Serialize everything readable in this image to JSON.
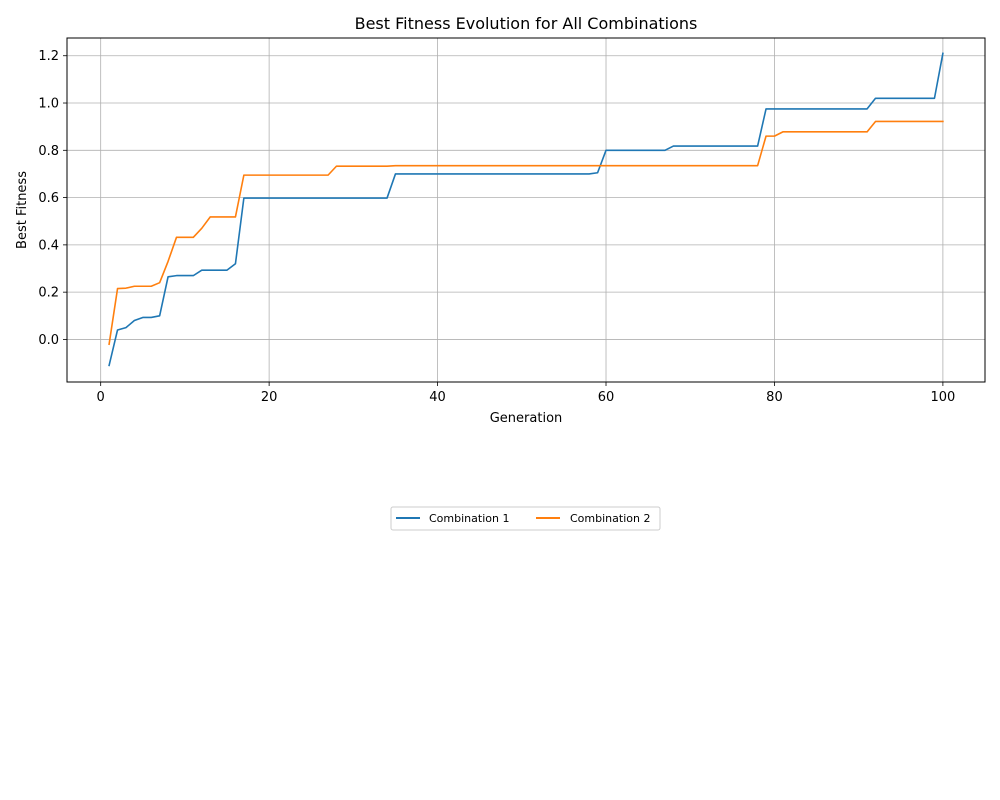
{
  "chart_data": {
    "type": "line",
    "title": "Best Fitness Evolution for All Combinations",
    "xlabel": "Generation",
    "ylabel": "Best Fitness",
    "xlim": [
      -4,
      105
    ],
    "ylim": [
      -0.18,
      1.275
    ],
    "x_ticks": [
      0,
      20,
      40,
      60,
      80,
      100
    ],
    "x_tick_labels": [
      "0",
      "20",
      "40",
      "60",
      "80",
      "100"
    ],
    "y_ticks": [
      0.0,
      0.2,
      0.4,
      0.6,
      0.8,
      1.0,
      1.2
    ],
    "y_tick_labels": [
      "0.0",
      "0.2",
      "0.4",
      "0.6",
      "0.8",
      "1.0",
      "1.2"
    ],
    "grid": true,
    "legend_position": "below plot, centered",
    "legend_columns": 2,
    "series": [
      {
        "name": "Combination 1",
        "color": "#1f77b4",
        "points": [
          [
            1,
            -0.11
          ],
          [
            2,
            0.04
          ],
          [
            3,
            0.05
          ],
          [
            4,
            0.08
          ],
          [
            5,
            0.093
          ],
          [
            6,
            0.093
          ],
          [
            7,
            0.1
          ],
          [
            8,
            0.265
          ],
          [
            9,
            0.27
          ],
          [
            11,
            0.27
          ],
          [
            12,
            0.293
          ],
          [
            15,
            0.293
          ],
          [
            16,
            0.32
          ],
          [
            17,
            0.598
          ],
          [
            34,
            0.598
          ],
          [
            35,
            0.7
          ],
          [
            58,
            0.7
          ],
          [
            59,
            0.705
          ],
          [
            60,
            0.8
          ],
          [
            67,
            0.8
          ],
          [
            68,
            0.818
          ],
          [
            78,
            0.818
          ],
          [
            79,
            0.975
          ],
          [
            91,
            0.975
          ],
          [
            92,
            1.02
          ],
          [
            99,
            1.02
          ],
          [
            100,
            1.21
          ]
        ]
      },
      {
        "name": "Combination 2",
        "color": "#ff7f0e",
        "points": [
          [
            1,
            -0.02
          ],
          [
            2,
            0.215
          ],
          [
            3,
            0.217
          ],
          [
            4,
            0.225
          ],
          [
            6,
            0.225
          ],
          [
            7,
            0.24
          ],
          [
            8,
            0.33
          ],
          [
            9,
            0.432
          ],
          [
            11,
            0.432
          ],
          [
            12,
            0.47
          ],
          [
            13,
            0.518
          ],
          [
            16,
            0.518
          ],
          [
            17,
            0.695
          ],
          [
            27,
            0.695
          ],
          [
            28,
            0.733
          ],
          [
            34,
            0.733
          ],
          [
            35,
            0.735
          ],
          [
            78,
            0.735
          ],
          [
            79,
            0.86
          ],
          [
            80,
            0.86
          ],
          [
            81,
            0.878
          ],
          [
            91,
            0.878
          ],
          [
            92,
            0.922
          ],
          [
            100,
            0.922
          ]
        ]
      }
    ]
  }
}
